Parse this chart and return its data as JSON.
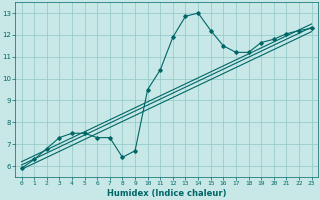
{
  "title": "",
  "xlabel": "Humidex (Indice chaleur)",
  "bg_color": "#c8e8e8",
  "line_color": "#006666",
  "grid_color": "#99cccc",
  "xlim": [
    -0.5,
    23.5
  ],
  "ylim": [
    5.5,
    13.5
  ],
  "xticks": [
    0,
    1,
    2,
    3,
    4,
    5,
    6,
    7,
    8,
    9,
    10,
    11,
    12,
    13,
    14,
    15,
    16,
    17,
    18,
    19,
    20,
    21,
    22,
    23
  ],
  "yticks": [
    6,
    7,
    8,
    9,
    10,
    11,
    12,
    13
  ],
  "line1_x": [
    0,
    1,
    2,
    3,
    4,
    5,
    6,
    7,
    8,
    9,
    10,
    11,
    12,
    13,
    14,
    15,
    16,
    17,
    18,
    19,
    20,
    21,
    22,
    23
  ],
  "line1_y": [
    5.9,
    6.3,
    6.8,
    7.3,
    7.5,
    7.5,
    7.3,
    7.3,
    6.4,
    6.7,
    9.5,
    10.4,
    11.9,
    12.85,
    13.0,
    12.2,
    11.5,
    11.2,
    11.2,
    11.65,
    11.8,
    12.05,
    12.2,
    12.3
  ],
  "line2_x": [
    0,
    23
  ],
  "line2_y": [
    6.05,
    12.35
  ],
  "line3_x": [
    0,
    23
  ],
  "line3_y": [
    6.2,
    12.5
  ],
  "line4_x": [
    0,
    23
  ],
  "line4_y": [
    5.85,
    12.15
  ]
}
